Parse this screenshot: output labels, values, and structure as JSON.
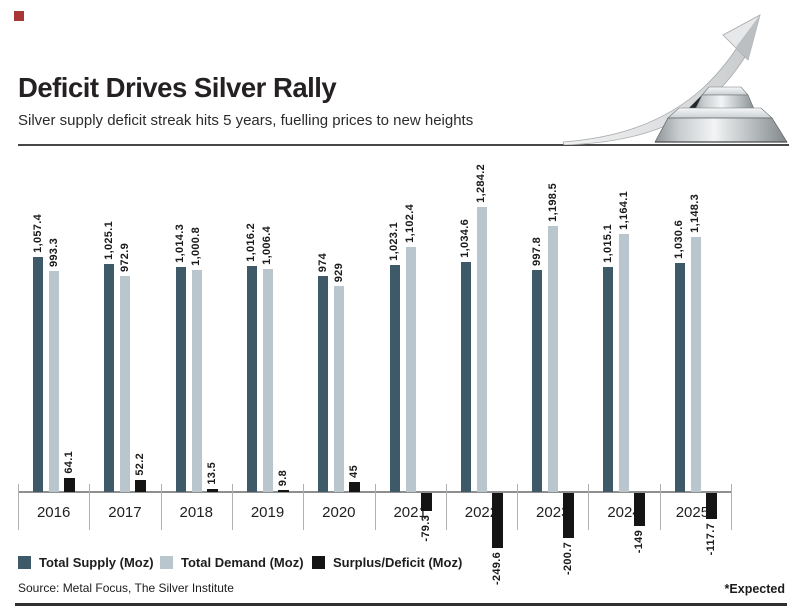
{
  "header": {
    "title": "Deficit Drives Silver Rally",
    "subtitle": "Silver supply deficit streak hits 5 years, fuelling prices to new heights"
  },
  "colors": {
    "supply": "#3e5a68",
    "demand": "#b9c6cd",
    "surplus_deficit": "#141414",
    "marker": "#a93535"
  },
  "chart_data": {
    "type": "bar",
    "categories": [
      "2016",
      "2017",
      "2018",
      "2019",
      "2020",
      "2021",
      "2022",
      "2023",
      "2024",
      "2025*"
    ],
    "series": [
      {
        "name": "Total Supply (Moz)",
        "color": "#3e5a68",
        "values": [
          1057.4,
          1025.1,
          1014.3,
          1016.2,
          974,
          1023.1,
          1034.6,
          997.8,
          1015.1,
          1030.6
        ],
        "labels": [
          "1,057.4",
          "1,025.1",
          "1,014.3",
          "1,016.2",
          "974",
          "1,023.1",
          "1,034.6",
          "997.8",
          "1,015.1",
          "1,030.6"
        ]
      },
      {
        "name": "Total Demand (Moz)",
        "color": "#b9c6cd",
        "values": [
          993.3,
          972.9,
          1000.8,
          1006.4,
          929,
          1102.4,
          1284.2,
          1198.5,
          1164.1,
          1148.3
        ],
        "labels": [
          "993.3",
          "972.9",
          "1,000.8",
          "1,006.4",
          "929",
          "1,102.4",
          "1,284.2",
          "1,198.5",
          "1,164.1",
          "1,148.3"
        ]
      },
      {
        "name": "Surplus/Deficit (Moz)",
        "color": "#141414",
        "values": [
          64.1,
          52.2,
          13.5,
          9.8,
          45,
          -79.3,
          -249.6,
          -200.7,
          -149,
          -117.7
        ],
        "labels": [
          "64.1",
          "52.2",
          "13.5",
          "9.8",
          "45",
          "-79.3",
          "-249.6",
          "-200.7",
          "-149",
          "-117.7"
        ]
      }
    ],
    "baseline": 0,
    "ylim": [
      -260,
      1300
    ],
    "grid": false,
    "legend_position": "bottom",
    "value_labels_rotated": true,
    "footnote": "*Expected"
  },
  "footer": {
    "source": "Source: Metal Focus, The Silver Institute",
    "expected_note": "*Expected"
  }
}
